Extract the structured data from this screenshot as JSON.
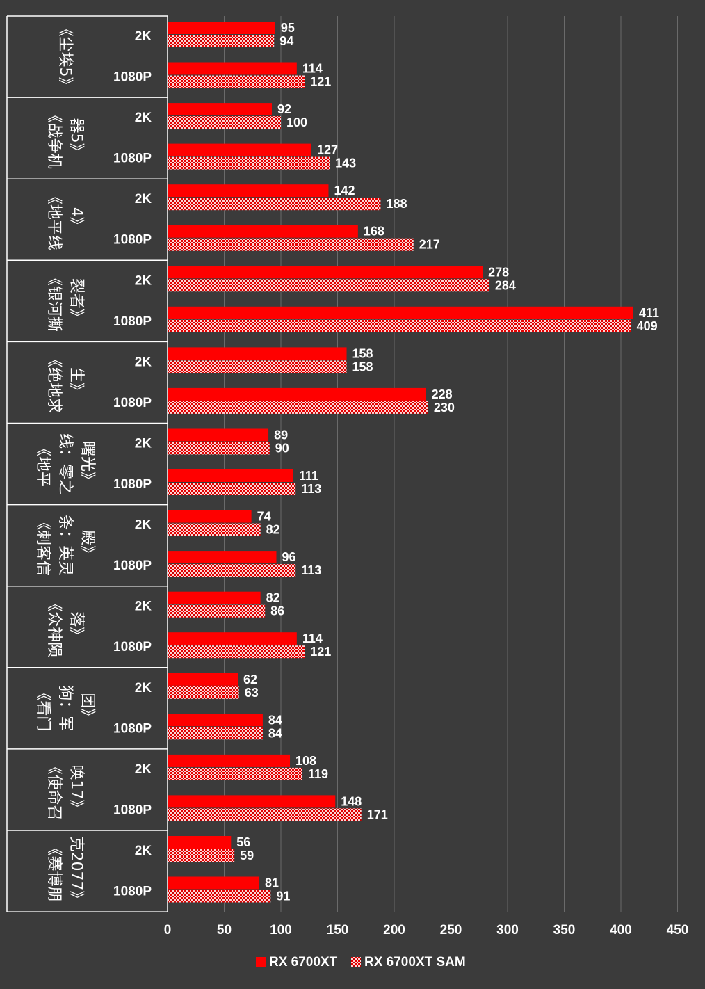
{
  "chart_data": {
    "type": "bar",
    "orientation": "horizontal",
    "xlim": [
      0,
      450
    ],
    "ticks": [
      0,
      50,
      100,
      150,
      200,
      250,
      300,
      350,
      400,
      450
    ],
    "grid": true,
    "legend_position": "bottom",
    "colors": {
      "background": "#3b3b3b",
      "bar": "#ff0000",
      "grid": "#6a6a6a"
    },
    "series": [
      {
        "name": "RX 6700XT",
        "pattern": "solid"
      },
      {
        "name": "RX 6700XT SAM",
        "pattern": "checker"
      }
    ],
    "groups": [
      {
        "game_lines": [
          "《尘埃5》"
        ],
        "rows": [
          {
            "res": "2K",
            "values": [
              95,
              94
            ]
          },
          {
            "res": "1080P",
            "values": [
              114,
              121
            ]
          }
        ]
      },
      {
        "game_lines": [
          "《战争机",
          "器5》"
        ],
        "rows": [
          {
            "res": "2K",
            "values": [
              92,
              100
            ]
          },
          {
            "res": "1080P",
            "values": [
              127,
              143
            ]
          }
        ]
      },
      {
        "game_lines": [
          "《地平线",
          "4》"
        ],
        "rows": [
          {
            "res": "2K",
            "values": [
              142,
              188
            ]
          },
          {
            "res": "1080P",
            "values": [
              168,
              217
            ]
          }
        ]
      },
      {
        "game_lines": [
          "《银河撕",
          "裂者》"
        ],
        "rows": [
          {
            "res": "2K",
            "values": [
              278,
              284
            ]
          },
          {
            "res": "1080P",
            "values": [
              411,
              409
            ]
          }
        ]
      },
      {
        "game_lines": [
          "《绝地求",
          "生》"
        ],
        "rows": [
          {
            "res": "2K",
            "values": [
              158,
              158
            ]
          },
          {
            "res": "1080P",
            "values": [
              228,
              230
            ]
          }
        ]
      },
      {
        "game_lines": [
          "《地平",
          "线：零之",
          "曙光》"
        ],
        "rows": [
          {
            "res": "2K",
            "values": [
              89,
              90
            ]
          },
          {
            "res": "1080P",
            "values": [
              111,
              113
            ]
          }
        ]
      },
      {
        "game_lines": [
          "《刺客信",
          "条：英灵",
          "殿》"
        ],
        "rows": [
          {
            "res": "2K",
            "values": [
              74,
              82
            ]
          },
          {
            "res": "1080P",
            "values": [
              96,
              113
            ]
          }
        ]
      },
      {
        "game_lines": [
          "《众神陨",
          "落》"
        ],
        "rows": [
          {
            "res": "2K",
            "values": [
              82,
              86
            ]
          },
          {
            "res": "1080P",
            "values": [
              114,
              121
            ]
          }
        ]
      },
      {
        "game_lines": [
          "《看门",
          "狗：军",
          "团》"
        ],
        "rows": [
          {
            "res": "2K",
            "values": [
              62,
              63
            ]
          },
          {
            "res": "1080P",
            "values": [
              84,
              84
            ]
          }
        ]
      },
      {
        "game_lines": [
          "《使命召",
          "唤17》"
        ],
        "rows": [
          {
            "res": "2K",
            "values": [
              108,
              119
            ]
          },
          {
            "res": "1080P",
            "values": [
              148,
              171
            ]
          }
        ]
      },
      {
        "game_lines": [
          "《赛博朋",
          "克2077》"
        ],
        "rows": [
          {
            "res": "2K",
            "values": [
              56,
              59
            ]
          },
          {
            "res": "1080P",
            "values": [
              81,
              91
            ]
          }
        ]
      }
    ]
  }
}
